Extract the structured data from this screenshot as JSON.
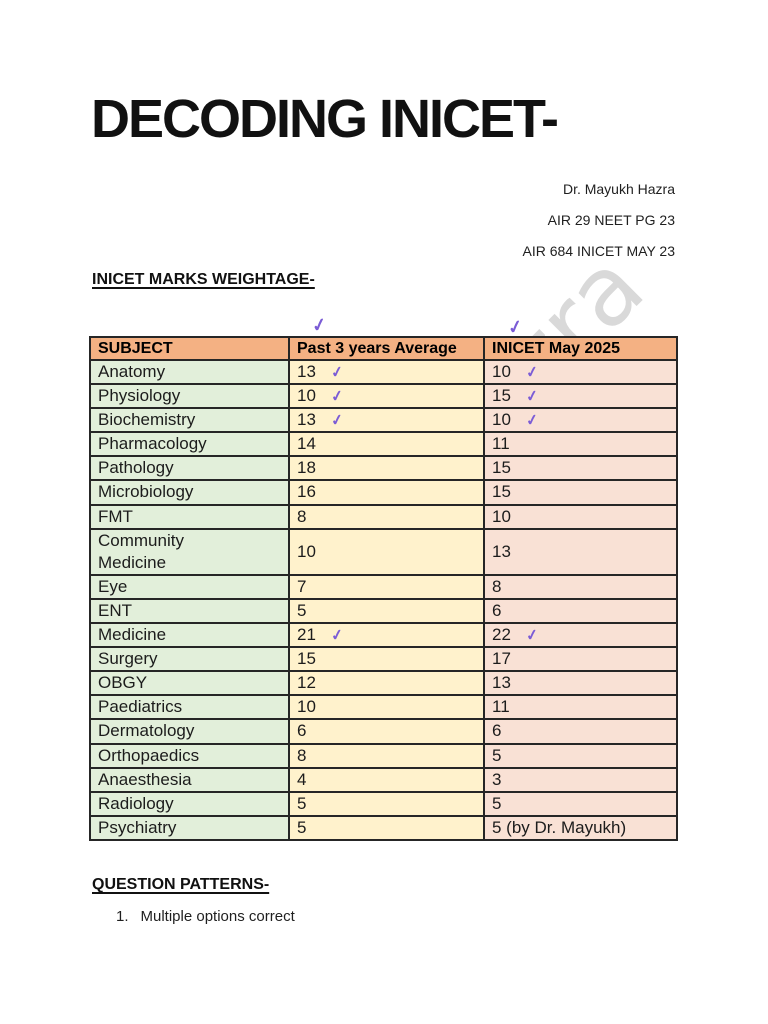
{
  "document": {
    "title": "DECODING INICET-",
    "author_lines": [
      "Dr. Mayukh Hazra",
      "AIR 29 NEET PG 23",
      "AIR 684 INICET MAY 23"
    ],
    "weightage_heading": "INICET MARKS WEIGHTAGE-",
    "patterns_heading": "QUESTION PATTERNS-",
    "pattern_items": [
      {
        "num": "1.",
        "label": "Multiple options correct"
      }
    ],
    "watermark_fragment": "zra"
  },
  "icons": {
    "handwritten_check": "✓"
  },
  "colors": {
    "header_bg": "#F4B183",
    "subject_col_bg": "#E2EFDA",
    "avg_col_bg": "#FFF2CC",
    "may_col_bg": "#F9E1D5",
    "table_border": "#262626",
    "check_ink": "#7B5CD6",
    "watermark": "#D9D9D9"
  },
  "table": {
    "headers": [
      "SUBJECT",
      "Past 3 years Average",
      "INICET May 2025"
    ],
    "rows": [
      {
        "subject": "Anatomy",
        "past_avg": "13",
        "may_2025": "10",
        "check_avg": true,
        "check_may": true
      },
      {
        "subject": "Physiology",
        "past_avg": "10",
        "may_2025": "15",
        "check_avg": true,
        "check_may": true
      },
      {
        "subject": "Biochemistry",
        "past_avg": "13",
        "may_2025": "10",
        "check_avg": true,
        "check_may": true
      },
      {
        "subject": "Pharmacology",
        "past_avg": "14",
        "may_2025": "11",
        "check_avg": false,
        "check_may": false
      },
      {
        "subject": "Pathology",
        "past_avg": "18",
        "may_2025": "15",
        "check_avg": false,
        "check_may": false
      },
      {
        "subject": "Microbiology",
        "past_avg": "16",
        "may_2025": "15",
        "check_avg": false,
        "check_may": false
      },
      {
        "subject": "FMT",
        "past_avg": "8",
        "may_2025": "10",
        "check_avg": false,
        "check_may": false
      },
      {
        "subject": "Community\nMedicine",
        "past_avg": "10",
        "may_2025": "13",
        "check_avg": false,
        "check_may": false
      },
      {
        "subject": "Eye",
        "past_avg": "7",
        "may_2025": "8",
        "check_avg": false,
        "check_may": false
      },
      {
        "subject": "ENT",
        "past_avg": "5",
        "may_2025": "6",
        "check_avg": false,
        "check_may": false
      },
      {
        "subject": "Medicine",
        "past_avg": "21",
        "may_2025": "22",
        "check_avg": true,
        "check_may": true
      },
      {
        "subject": "Surgery",
        "past_avg": "15",
        "may_2025": "17",
        "check_avg": false,
        "check_may": false
      },
      {
        "subject": "OBGY",
        "past_avg": "12",
        "may_2025": "13",
        "check_avg": false,
        "check_may": false
      },
      {
        "subject": "Paediatrics",
        "past_avg": "10",
        "may_2025": "11",
        "check_avg": false,
        "check_may": false
      },
      {
        "subject": "Dermatology",
        "past_avg": "6",
        "may_2025": "6",
        "check_avg": false,
        "check_may": false
      },
      {
        "subject": "Orthopaedics",
        "past_avg": "8",
        "may_2025": "5",
        "check_avg": false,
        "check_may": false
      },
      {
        "subject": "Anaesthesia",
        "past_avg": "4",
        "may_2025": "3",
        "check_avg": false,
        "check_may": false
      },
      {
        "subject": "Radiology",
        "past_avg": "5",
        "may_2025": "5",
        "check_avg": false,
        "check_may": false
      },
      {
        "subject": "Psychiatry",
        "past_avg": "5",
        "may_2025": "5 (by Dr. Mayukh)",
        "check_avg": false,
        "check_may": false
      }
    ]
  }
}
